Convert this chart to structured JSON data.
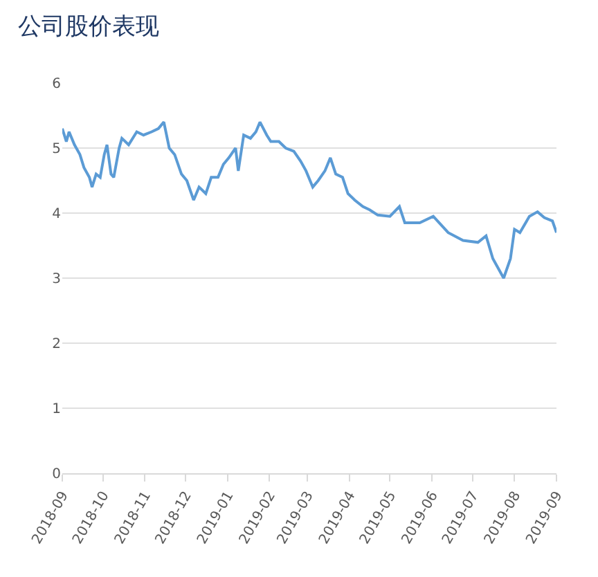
{
  "chart_data": {
    "type": "line",
    "title": "公司股价表现",
    "x": [
      "2018-09-01",
      "2018-09-04",
      "2018-09-06",
      "2018-09-10",
      "2018-09-14",
      "2018-09-17",
      "2018-09-21",
      "2018-09-23",
      "2018-09-26",
      "2018-09-29",
      "2018-10-02",
      "2018-10-04",
      "2018-10-07",
      "2018-10-09",
      "2018-10-13",
      "2018-10-15",
      "2018-10-20",
      "2018-10-26",
      "2018-10-31",
      "2018-11-06",
      "2018-11-11",
      "2018-11-15",
      "2018-11-19",
      "2018-11-23",
      "2018-11-28",
      "2018-12-02",
      "2018-12-07",
      "2018-12-11",
      "2018-12-16",
      "2018-12-20",
      "2018-12-25",
      "2018-12-29",
      "2019-01-02",
      "2019-01-07",
      "2019-01-09",
      "2019-01-13",
      "2019-01-18",
      "2019-01-22",
      "2019-01-25",
      "2019-01-30",
      "2019-02-02",
      "2019-02-08",
      "2019-02-13",
      "2019-02-19",
      "2019-02-24",
      "2019-02-28",
      "2019-03-05",
      "2019-03-09",
      "2019-03-14",
      "2019-03-18",
      "2019-03-22",
      "2019-03-27",
      "2019-03-31",
      "2019-04-05",
      "2019-04-11",
      "2019-04-16",
      "2019-04-22",
      "2019-05-01",
      "2019-05-08",
      "2019-05-12",
      "2019-05-23",
      "2019-06-02",
      "2019-06-13",
      "2019-06-24",
      "2019-07-05",
      "2019-07-11",
      "2019-07-16",
      "2019-07-24",
      "2019-07-29",
      "2019-08-01",
      "2019-08-05",
      "2019-08-12",
      "2019-08-18",
      "2019-08-23",
      "2019-08-29",
      "2019-09-01"
    ],
    "series": [
      {
        "color": "#5b9bd5",
        "values": [
          5.3,
          5.1,
          5.25,
          5.05,
          4.9,
          4.7,
          4.55,
          4.4,
          4.6,
          4.55,
          4.9,
          5.05,
          4.6,
          4.55,
          5.0,
          5.15,
          5.05,
          5.25,
          5.2,
          5.25,
          5.3,
          5.4,
          5.0,
          4.9,
          4.6,
          4.5,
          4.2,
          4.4,
          4.3,
          4.55,
          4.55,
          4.75,
          4.85,
          5.0,
          4.65,
          5.2,
          5.15,
          5.25,
          5.4,
          5.2,
          5.1,
          5.1,
          5.0,
          4.95,
          4.8,
          4.65,
          4.4,
          4.5,
          4.65,
          4.85,
          4.6,
          4.55,
          4.3,
          4.2,
          4.1,
          4.05,
          3.97,
          3.95,
          4.1,
          3.85,
          3.85,
          3.95,
          3.7,
          3.58,
          3.55,
          3.65,
          3.3,
          3.0,
          3.3,
          3.75,
          3.7,
          3.95,
          4.02,
          3.93,
          3.88,
          3.7
        ]
      }
    ],
    "xlim": [
      "2018-09-01",
      "2019-09-01"
    ],
    "xticks": [
      "2018-09",
      "2018-10",
      "2018-11",
      "2018-12",
      "2019-01",
      "2019-02",
      "2019-03",
      "2019-04",
      "2019-05",
      "2019-06",
      "2019-07",
      "2019-08",
      "2019-09"
    ],
    "ylim": [
      0,
      6
    ],
    "yticks": [
      0,
      1,
      2,
      3,
      4,
      5,
      6
    ],
    "grid": "y",
    "marker": "none",
    "line_style": "solid"
  }
}
